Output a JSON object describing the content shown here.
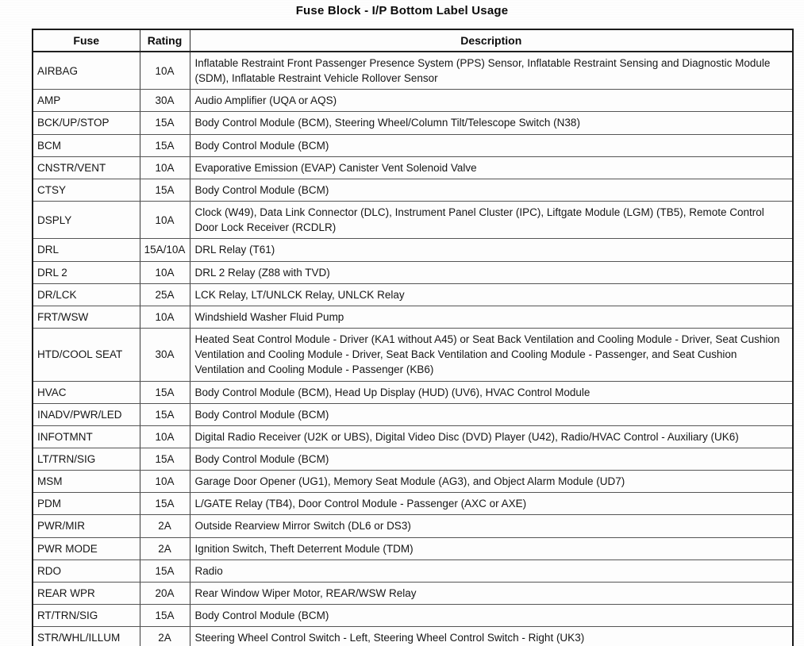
{
  "title": "Fuse Block - I/P Bottom Label Usage",
  "table": {
    "headers": [
      "Fuse",
      "Rating",
      "Description"
    ],
    "rows": [
      {
        "fuse": "AIRBAG",
        "rating": "10A",
        "description": "Inflatable Restraint Front Passenger Presence System (PPS) Sensor, Inflatable Restraint Sensing and Diagnostic Module (SDM), Inflatable Restraint Vehicle Rollover Sensor"
      },
      {
        "fuse": "AMP",
        "rating": "30A",
        "description": "Audio Amplifier (UQA or AQS)"
      },
      {
        "fuse": "BCK/UP/STOP",
        "rating": "15A",
        "description": "Body Control Module (BCM), Steering Wheel/Column Tilt/Telescope Switch (N38)"
      },
      {
        "fuse": "BCM",
        "rating": "15A",
        "description": "Body Control Module (BCM)"
      },
      {
        "fuse": "CNSTR/VENT",
        "rating": "10A",
        "description": "Evaporative Emission (EVAP) Canister Vent Solenoid Valve"
      },
      {
        "fuse": "CTSY",
        "rating": "15A",
        "description": "Body Control Module (BCM)"
      },
      {
        "fuse": "DSPLY",
        "rating": "10A",
        "description": "Clock (W49), Data Link Connector (DLC), Instrument Panel Cluster (IPC), Liftgate Module (LGM) (TB5), Remote Control Door Lock Receiver (RCDLR)"
      },
      {
        "fuse": "DRL",
        "rating": "15A/10A",
        "description": "DRL Relay (T61)"
      },
      {
        "fuse": "DRL 2",
        "rating": "10A",
        "description": "DRL 2 Relay (Z88 with TVD)"
      },
      {
        "fuse": "DR/LCK",
        "rating": "25A",
        "description": "LCK Relay, LT/UNLCK Relay, UNLCK Relay"
      },
      {
        "fuse": "FRT/WSW",
        "rating": "10A",
        "description": "Windshield Washer Fluid Pump"
      },
      {
        "fuse": "HTD/COOL SEAT",
        "rating": "30A",
        "description": "Heated Seat Control Module - Driver (KA1 without A45) or Seat Back Ventilation and Cooling Module - Driver, Seat Cushion Ventilation and Cooling Module - Driver, Seat Back Ventilation and Cooling Module - Passenger, and Seat Cushion Ventilation and Cooling Module - Passenger (KB6)"
      },
      {
        "fuse": "HVAC",
        "rating": "15A",
        "description": "Body Control Module (BCM), Head Up Display (HUD) (UV6), HVAC Control Module"
      },
      {
        "fuse": "INADV/PWR/LED",
        "rating": "15A",
        "description": "Body Control Module (BCM)"
      },
      {
        "fuse": "INFOTMNT",
        "rating": "10A",
        "description": "Digital Radio Receiver (U2K or UBS), Digital Video Disc (DVD) Player (U42), Radio/HVAC Control - Auxiliary (UK6)"
      },
      {
        "fuse": "LT/TRN/SIG",
        "rating": "15A",
        "description": "Body Control Module (BCM)"
      },
      {
        "fuse": "MSM",
        "rating": "10A",
        "description": "Garage Door Opener (UG1), Memory Seat Module (AG3), and Object Alarm Module (UD7)"
      },
      {
        "fuse": "PDM",
        "rating": "15A",
        "description": "L/GATE Relay (TB4), Door Control Module - Passenger (AXC or AXE)"
      },
      {
        "fuse": "PWR/MIR",
        "rating": "2A",
        "description": "Outside Rearview Mirror Switch (DL6 or DS3)"
      },
      {
        "fuse": "PWR MODE",
        "rating": "2A",
        "description": "Ignition Switch, Theft Deterrent Module (TDM)"
      },
      {
        "fuse": "RDO",
        "rating": "15A",
        "description": "Radio"
      },
      {
        "fuse": "REAR WPR",
        "rating": "20A",
        "description": "Rear Window Wiper Motor, REAR/WSW Relay"
      },
      {
        "fuse": "RT/TRN/SIG",
        "rating": "15A",
        "description": "Body Control Module (BCM)"
      },
      {
        "fuse": "STR/WHL/ILLUM",
        "rating": "2A",
        "description": "Steering Wheel Control Switch - Left, Steering Wheel Control Switch - Right (UK3)"
      }
    ]
  }
}
